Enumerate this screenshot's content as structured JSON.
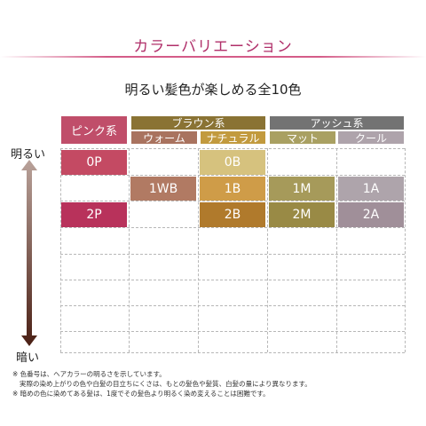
{
  "title": "カラーバリエーション",
  "subtitle": "明るい髪色が楽しめる全10色",
  "groups": {
    "pink": "ピンク系",
    "brown": "ブラウン系",
    "ash": "アッシュ系"
  },
  "subgroups": {
    "warm": "ウォーム",
    "natural": "ナチュラル",
    "matte": "マット",
    "cool": "クール"
  },
  "scale": {
    "bright": "明るい",
    "dark": "暗い"
  },
  "colors": {
    "0P": "0P",
    "0B": "0B",
    "1WB": "1WB",
    "1B": "1B",
    "1M": "1M",
    "1A": "1A",
    "2P": "2P",
    "2B": "2B",
    "2M": "2M",
    "2A": "2A"
  },
  "palette": {
    "pink_header": "#c04e6a",
    "brown_header": "#8a7334",
    "ash_header": "#737373",
    "warm_header": "#a9735f",
    "natural_header": "#c29a3e",
    "matte_header": "#a9a062",
    "cool_header": "#aea3ab"
  },
  "notes": [
    "※ 色番号は、ヘアカラーの明るさを示しています。",
    "実際の染め上がりの色や白髪の目立ちにくさは、もとの髪色や髪質、白髪の量により異なります。",
    "※ 暗めの色に染めてある髪は、1度でその髪色より明るく染め変えることは困難です。"
  ]
}
